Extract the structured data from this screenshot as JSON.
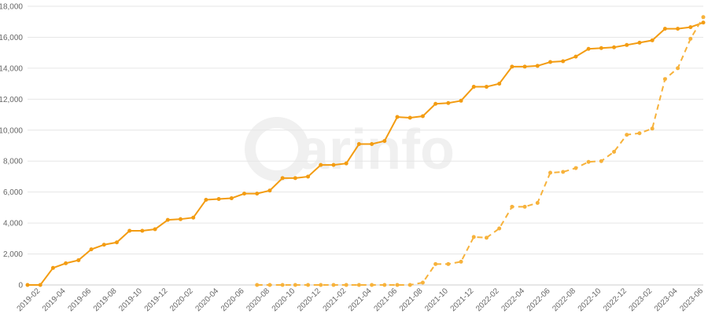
{
  "chart_data": {
    "type": "line",
    "watermark": "arinfo",
    "categories": [
      null,
      "2019-02",
      null,
      "2019-04",
      null,
      "2019-06",
      null,
      "2019-08",
      null,
      "2019-10",
      null,
      "2019-12",
      null,
      "2020-02",
      null,
      "2020-04",
      null,
      "2020-06",
      null,
      "2020-08",
      null,
      "2020-10",
      null,
      "2020-12",
      null,
      "2021-02",
      null,
      "2021-04",
      null,
      "2021-06",
      null,
      "2021-08",
      null,
      "2021-10",
      null,
      "2021-12",
      null,
      "2022-02",
      null,
      "2022-04",
      null,
      "2022-06",
      null,
      "2022-08",
      null,
      "2022-10",
      null,
      "2022-12",
      null,
      "2023-02",
      null,
      "2023-04",
      null,
      "2023-06"
    ],
    "series": [
      {
        "color": "#f39c12",
        "dashed": false,
        "values": [
          0,
          0,
          1100,
          1400,
          1600,
          2300,
          2600,
          2750,
          3500,
          3500,
          3600,
          4200,
          4250,
          4350,
          5500,
          5550,
          5600,
          5900,
          5900,
          6100,
          6900,
          6900,
          7000,
          7750,
          7750,
          7850,
          9100,
          9100,
          9300,
          10850,
          10800,
          10900,
          11700,
          11750,
          11900,
          12800,
          12800,
          13000,
          14100,
          14100,
          14150,
          14400,
          14450,
          14750,
          15250,
          15300,
          15350,
          15500,
          15650,
          15800,
          16550,
          16550,
          16650,
          16950
        ]
      },
      {
        "color": "#f7b23b",
        "dashed": true,
        "values": [
          null,
          null,
          null,
          null,
          null,
          null,
          null,
          null,
          null,
          null,
          null,
          null,
          null,
          null,
          null,
          null,
          null,
          null,
          0,
          0,
          0,
          0,
          0,
          0,
          0,
          0,
          0,
          0,
          0,
          0,
          0,
          150,
          1350,
          1350,
          1500,
          3100,
          3050,
          3650,
          5050,
          5050,
          5300,
          7250,
          7300,
          7550,
          7950,
          8000,
          8600,
          9700,
          9800,
          10100,
          13300,
          14000,
          15900,
          17300
        ]
      }
    ],
    "ylim": [
      0,
      18000
    ],
    "yticks": [
      0,
      {
        "value": 2000,
        "label": "2,000"
      },
      {
        "value": 4000,
        "label": "4,000"
      },
      {
        "value": 6000,
        "label": "6,000"
      },
      {
        "value": 8000,
        "label": "8,000"
      },
      {
        "value": 10000,
        "label": "10,000"
      },
      {
        "value": 12000,
        "label": "12,000"
      },
      {
        "value": 14000,
        "label": "14,000"
      },
      {
        "value": 16000,
        "label": "16,000"
      },
      {
        "value": 18000,
        "label": "18,000"
      }
    ],
    "grid": true
  }
}
